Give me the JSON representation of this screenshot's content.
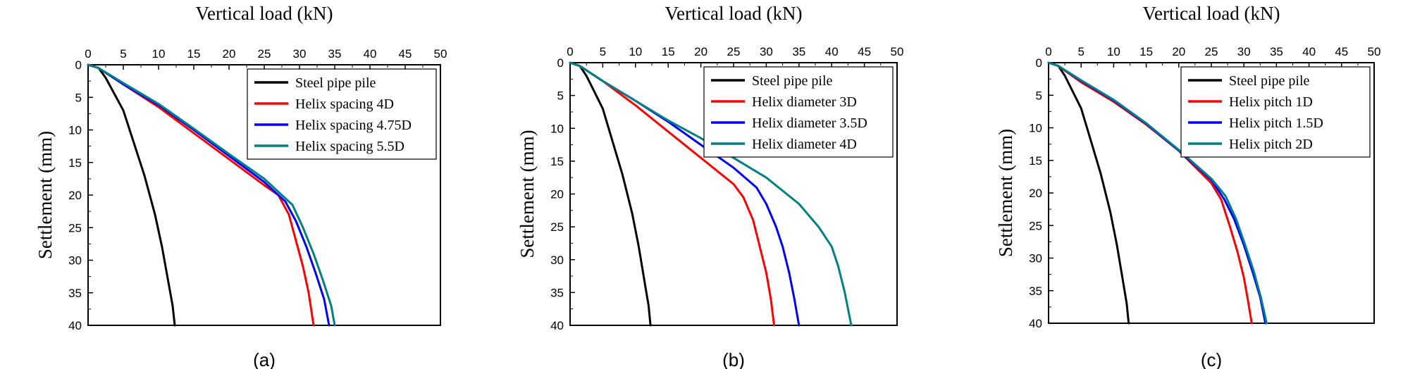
{
  "chart_data": [
    {
      "type": "line",
      "panel_label": "(a)",
      "xlabel": "Vertical load (kN)",
      "ylabel": "Settlement (mm)",
      "xlim": [
        0,
        50
      ],
      "ylim": [
        0,
        40
      ],
      "y_inverted": true,
      "x_axis_position": "top",
      "xticks": [
        0,
        5,
        10,
        15,
        20,
        25,
        30,
        35,
        40,
        45,
        50
      ],
      "yticks": [
        0,
        5,
        10,
        15,
        20,
        25,
        30,
        35,
        40
      ],
      "grid": false,
      "legend_position": "top-right",
      "series": [
        {
          "name": "Steel pipe pile",
          "color": "#000000",
          "points": [
            [
              0,
              0
            ],
            [
              1.5,
              0.5
            ],
            [
              2.5,
              2
            ],
            [
              3.5,
              4
            ],
            [
              5,
              7
            ],
            [
              6.5,
              12
            ],
            [
              8,
              17
            ],
            [
              9.5,
              23
            ],
            [
              10.5,
              28
            ],
            [
              11.5,
              34
            ],
            [
              12,
              37
            ],
            [
              12.3,
              40
            ]
          ]
        },
        {
          "name": "Helix spacing 4D",
          "color": "#ff0000",
          "points": [
            [
              0,
              0
            ],
            [
              1.5,
              0.5
            ],
            [
              5,
              3
            ],
            [
              10,
              6.5
            ],
            [
              15,
              10.5
            ],
            [
              20,
              14.5
            ],
            [
              25,
              18.5
            ],
            [
              27,
              20
            ],
            [
              28.5,
              23
            ],
            [
              29.5,
              27
            ],
            [
              30.5,
              31
            ],
            [
              31.3,
              35
            ],
            [
              32,
              40
            ]
          ]
        },
        {
          "name": "Helix spacing 4.75D",
          "color": "#0000ff",
          "points": [
            [
              0,
              0
            ],
            [
              1.5,
              0.5
            ],
            [
              5,
              3
            ],
            [
              10,
              6.2
            ],
            [
              15,
              10
            ],
            [
              20,
              14
            ],
            [
              25,
              18
            ],
            [
              28,
              21
            ],
            [
              29.5,
              24
            ],
            [
              31,
              28
            ],
            [
              32.3,
              32
            ],
            [
              33.5,
              36
            ],
            [
              34.2,
              40
            ]
          ]
        },
        {
          "name": "Helix spacing 5.5D",
          "color": "#008080",
          "points": [
            [
              0,
              0
            ],
            [
              1.5,
              0.5
            ],
            [
              5,
              2.8
            ],
            [
              10,
              6
            ],
            [
              15,
              9.8
            ],
            [
              20,
              13.7
            ],
            [
              25,
              17.5
            ],
            [
              29,
              21.5
            ],
            [
              30.5,
              25
            ],
            [
              32,
              29
            ],
            [
              33.3,
              33
            ],
            [
              34.5,
              37
            ],
            [
              35,
              40
            ]
          ]
        }
      ]
    },
    {
      "type": "line",
      "panel_label": "(b)",
      "xlabel": "Vertical load (kN)",
      "ylabel": "Settlement (mm)",
      "xlim": [
        0,
        50
      ],
      "ylim": [
        0,
        40
      ],
      "y_inverted": true,
      "x_axis_position": "top",
      "xticks": [
        0,
        5,
        10,
        15,
        20,
        25,
        30,
        35,
        40,
        45,
        50
      ],
      "yticks": [
        0,
        5,
        10,
        15,
        20,
        25,
        30,
        35,
        40
      ],
      "grid": false,
      "legend_position": "top-right",
      "series": [
        {
          "name": "Steel pipe pile",
          "color": "#000000",
          "points": [
            [
              0,
              0
            ],
            [
              1.5,
              0.5
            ],
            [
              2.5,
              2
            ],
            [
              3.5,
              4
            ],
            [
              5,
              7
            ],
            [
              6.5,
              12
            ],
            [
              8,
              17
            ],
            [
              9.5,
              23
            ],
            [
              10.5,
              28
            ],
            [
              11.5,
              34
            ],
            [
              12,
              37
            ],
            [
              12.3,
              40
            ]
          ]
        },
        {
          "name": "Helix diameter 3D",
          "color": "#ff0000",
          "points": [
            [
              0,
              0
            ],
            [
              1.5,
              0.5
            ],
            [
              5,
              2.8
            ],
            [
              10,
              6.5
            ],
            [
              15,
              10.5
            ],
            [
              20,
              14.5
            ],
            [
              25,
              18.5
            ],
            [
              26.5,
              20.5
            ],
            [
              28,
              24
            ],
            [
              29,
              28
            ],
            [
              30,
              32
            ],
            [
              30.7,
              36
            ],
            [
              31.2,
              40
            ]
          ]
        },
        {
          "name": "Helix diameter 3.5D",
          "color": "#0000ff",
          "points": [
            [
              0,
              0
            ],
            [
              1.5,
              0.5
            ],
            [
              5,
              2.8
            ],
            [
              10,
              5.8
            ],
            [
              15,
              9
            ],
            [
              20,
              12.5
            ],
            [
              25,
              16
            ],
            [
              28.5,
              19
            ],
            [
              30,
              21.5
            ],
            [
              31.5,
              25
            ],
            [
              32.5,
              28
            ],
            [
              33.5,
              32
            ],
            [
              34.3,
              36
            ],
            [
              35,
              40
            ]
          ]
        },
        {
          "name": "Helix diameter 4D",
          "color": "#008080",
          "points": [
            [
              0,
              0
            ],
            [
              1.5,
              0.5
            ],
            [
              5,
              2.8
            ],
            [
              10,
              5.8
            ],
            [
              15,
              8.8
            ],
            [
              20,
              11.5
            ],
            [
              25,
              14.5
            ],
            [
              30,
              17.5
            ],
            [
              35,
              21.5
            ],
            [
              38,
              25
            ],
            [
              40,
              28
            ],
            [
              41,
              31
            ],
            [
              42,
              35
            ],
            [
              42.6,
              38
            ],
            [
              43,
              40
            ]
          ]
        }
      ]
    },
    {
      "type": "line",
      "panel_label": "(c)",
      "xlabel": "Vertical load (kN)",
      "ylabel": "Settlement (mm)",
      "xlim": [
        0,
        50
      ],
      "ylim": [
        0,
        40
      ],
      "y_inverted": true,
      "x_axis_position": "top",
      "xticks": [
        0,
        5,
        10,
        15,
        20,
        25,
        30,
        35,
        40,
        45,
        50
      ],
      "yticks": [
        0,
        5,
        10,
        15,
        20,
        25,
        30,
        35,
        40
      ],
      "grid": false,
      "legend_position": "top-right",
      "series": [
        {
          "name": "Steel pipe pile",
          "color": "#000000",
          "points": [
            [
              0,
              0
            ],
            [
              1.5,
              0.5
            ],
            [
              2.5,
              2
            ],
            [
              3.5,
              4
            ],
            [
              5,
              7
            ],
            [
              6.5,
              12
            ],
            [
              8,
              17
            ],
            [
              9.5,
              23
            ],
            [
              10.5,
              28
            ],
            [
              11.5,
              34
            ],
            [
              12,
              37
            ],
            [
              12.3,
              40
            ]
          ]
        },
        {
          "name": "Helix pitch 1D",
          "color": "#ff0000",
          "points": [
            [
              0,
              0
            ],
            [
              1.5,
              0.5
            ],
            [
              5,
              3
            ],
            [
              10,
              6
            ],
            [
              15,
              9.5
            ],
            [
              20,
              13.5
            ],
            [
              25,
              18.5
            ],
            [
              26.5,
              21
            ],
            [
              27.8,
              25
            ],
            [
              29,
              29
            ],
            [
              30,
              33
            ],
            [
              30.7,
              37
            ],
            [
              31.2,
              40
            ]
          ]
        },
        {
          "name": "Helix pitch 1.5D",
          "color": "#0000ff",
          "points": [
            [
              0,
              0
            ],
            [
              1.5,
              0.5
            ],
            [
              5,
              2.8
            ],
            [
              10,
              5.8
            ],
            [
              15,
              9.4
            ],
            [
              20,
              13.5
            ],
            [
              25,
              18
            ],
            [
              27,
              21
            ],
            [
              28.5,
              24
            ],
            [
              30,
              28
            ],
            [
              31.3,
              32
            ],
            [
              32.5,
              36
            ],
            [
              33.3,
              40
            ]
          ]
        },
        {
          "name": "Helix pitch 2D",
          "color": "#008080",
          "points": [
            [
              0,
              0
            ],
            [
              1.5,
              0.5
            ],
            [
              5,
              2.7
            ],
            [
              10,
              5.7
            ],
            [
              15,
              9.3
            ],
            [
              20,
              13.4
            ],
            [
              25,
              17.8
            ],
            [
              27.2,
              20.5
            ],
            [
              28.8,
              24
            ],
            [
              30.2,
              28
            ],
            [
              31.5,
              32
            ],
            [
              32.6,
              36
            ],
            [
              33.5,
              40
            ]
          ]
        }
      ]
    }
  ]
}
